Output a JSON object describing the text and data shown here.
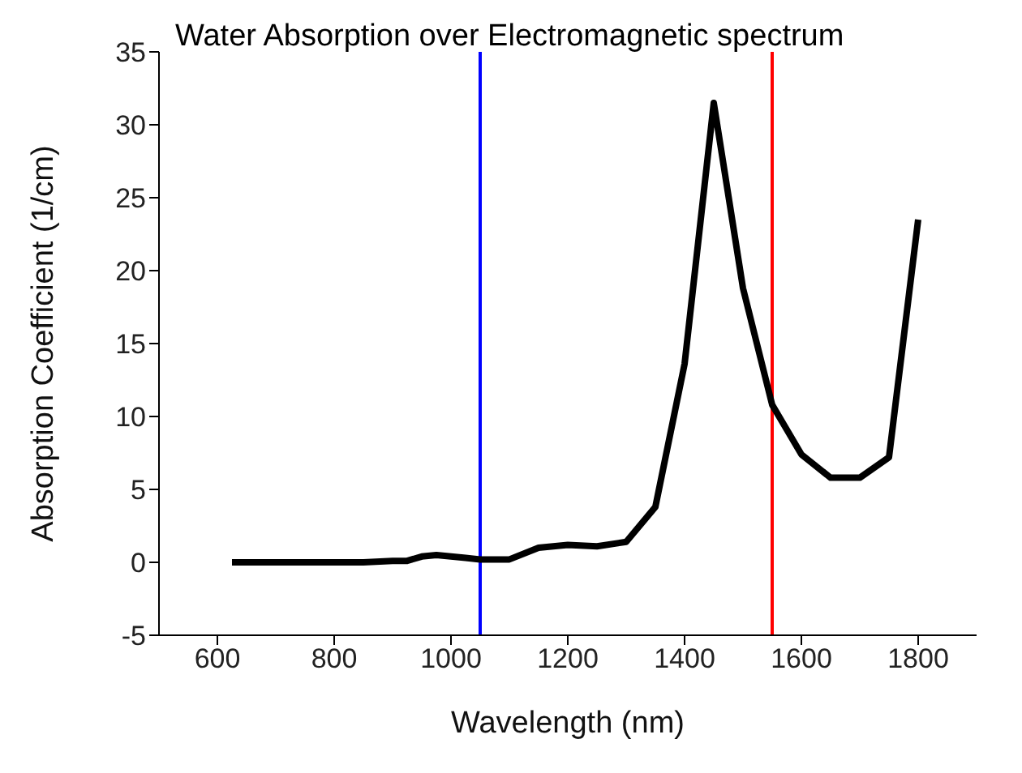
{
  "chart_data": {
    "type": "line",
    "title": "Water Absorption over Electromagnetic spectrum",
    "xlabel": "Wavelength (nm)",
    "ylabel": "Absorption Coefficient (1/cm)",
    "x": [
      625,
      650,
      700,
      750,
      800,
      850,
      900,
      925,
      950,
      975,
      1000,
      1025,
      1050,
      1075,
      1100,
      1150,
      1200,
      1250,
      1300,
      1350,
      1400,
      1450,
      1500,
      1550,
      1600,
      1650,
      1700,
      1750,
      1800
    ],
    "series": [
      {
        "color": "#000000",
        "values": [
          0,
          0,
          0,
          0,
          0,
          0,
          0.1,
          0.1,
          0.4,
          0.5,
          0.4,
          0.3,
          0.2,
          0.2,
          0.2,
          1,
          1.2,
          1.1,
          1.4,
          3.8,
          13.6,
          31.5,
          18.8,
          10.8,
          7.4,
          5.8,
          5.8,
          7.2,
          23.5
        ]
      }
    ],
    "xlim": [
      500,
      1900
    ],
    "xticks": [
      600,
      800,
      1000,
      1200,
      1400,
      1600,
      1800
    ],
    "ylim": [
      -5,
      35
    ],
    "yticks": [
      -5,
      0,
      5,
      10,
      15,
      20,
      25,
      30,
      35
    ],
    "ref_lines": [
      {
        "axis": "x",
        "value": 1050,
        "color": "#0000ff"
      },
      {
        "axis": "x",
        "value": 1550,
        "color": "#ff0000"
      }
    ],
    "grid": false,
    "legend": false,
    "marker": "none",
    "line_style": "solid"
  }
}
